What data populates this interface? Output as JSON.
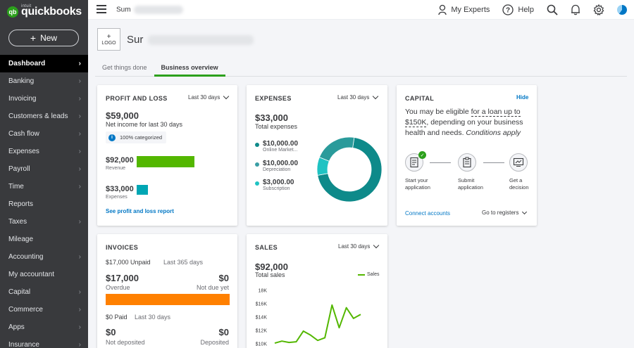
{
  "brand": {
    "intuit": "intuit",
    "name": "quickbooks",
    "mark": "qb"
  },
  "sidebar": {
    "new_label": "New",
    "items": [
      {
        "label": "Dashboard",
        "active": true
      },
      {
        "label": "Banking",
        "chevron": true
      },
      {
        "label": "Invoicing",
        "chevron": true
      },
      {
        "label": "Customers & leads",
        "chevron": true
      },
      {
        "label": "Cash flow",
        "chevron": true
      },
      {
        "label": "Expenses",
        "chevron": true
      },
      {
        "label": "Payroll",
        "chevron": true
      },
      {
        "label": "Time",
        "chevron": true
      },
      {
        "label": "Reports",
        "chevron": false
      },
      {
        "label": "Taxes",
        "chevron": true
      },
      {
        "label": "Mileage",
        "chevron": false
      },
      {
        "label": "Accounting",
        "chevron": true
      },
      {
        "label": "My accountant",
        "chevron": false
      },
      {
        "label": "Capital",
        "chevron": true
      },
      {
        "label": "Commerce",
        "chevron": true
      },
      {
        "label": "Apps",
        "chevron": true
      },
      {
        "label": "Insurance",
        "chevron": true
      }
    ]
  },
  "topbar": {
    "company_short": "Sum",
    "my_experts": "My Experts",
    "help": "Help"
  },
  "header": {
    "logo_plus": "+",
    "logo_label": "LOGO",
    "company_name": "Sur"
  },
  "tabs": [
    {
      "label": "Get things done",
      "active": false
    },
    {
      "label": "Business overview",
      "active": true
    }
  ],
  "profit_loss": {
    "title": "PROFIT AND LOSS",
    "period": "Last 30 days",
    "net_income": "$59,000",
    "net_income_label": "Net income for last 30 days",
    "categorized": "100% categorized",
    "revenue_value": "$92,000",
    "revenue_label": "Revenue",
    "expenses_value": "$33,000",
    "expenses_label": "Expenses",
    "report_link": "See profit and loss report",
    "revenue_color": "#53b700",
    "expenses_color": "#00a6b4"
  },
  "expenses": {
    "title": "EXPENSES",
    "period": "Last 30 days",
    "total": "$33,000",
    "total_label": "Total expenses",
    "items": [
      {
        "value": "$10,000.00",
        "label": "Online Market...",
        "amount": 10000,
        "color": "#0e8a8a"
      },
      {
        "value": "$10,000.00",
        "label": "Depreciation",
        "amount": 10000,
        "color": "#3a9ea5"
      },
      {
        "value": "$3,000.00",
        "label": "Subscription",
        "amount": 3000,
        "color": "#1fc3c3"
      }
    ],
    "donut_segments": [
      {
        "amount": 23000,
        "color": "#0e8a8a"
      },
      {
        "amount": 3000,
        "color": "#1fc3c3"
      },
      {
        "amount": 7000,
        "color": "#2a9b9b"
      }
    ]
  },
  "capital": {
    "title": "CAPITAL",
    "hide": "Hide",
    "text_1": "You may be eligible ",
    "text_link": "for a loan up to $150K",
    "text_2": ", depending on your business health and needs. ",
    "text_em": "Conditions apply",
    "steps": [
      {
        "line1": "Start your",
        "line2": "application"
      },
      {
        "line1": "Submit",
        "line2": "application"
      },
      {
        "line1": "Get a",
        "line2": "decision"
      }
    ],
    "connect": "Connect accounts",
    "go_to": "Go to registers"
  },
  "invoices": {
    "title": "INVOICES",
    "unpaid": "$17,000 Unpaid",
    "unpaid_period": "Last 365 days",
    "overdue_value": "$17,000",
    "overdue_label": "Overdue",
    "not_due_value": "$0",
    "not_due_label": "Not due yet",
    "paid": "$0 Paid",
    "paid_period": "Last 30 days",
    "not_deposited_value": "$0",
    "not_deposited_label": "Not deposited",
    "deposited_value": "$0",
    "deposited_label": "Deposited",
    "bar_color": "#ff8000"
  },
  "sales": {
    "title": "SALES",
    "period": "Last 30 days",
    "total": "$92,000",
    "total_label": "Total sales",
    "legend": "Sales"
  },
  "chart_data": {
    "type": "line",
    "title": "",
    "xlabel": "",
    "ylabel": "",
    "yticks": [
      "18K",
      "$16K",
      "$14K",
      "$12K",
      "$10K"
    ],
    "ylim": [
      10000,
      18000
    ],
    "series": [
      {
        "name": "Sales",
        "color": "#53b700",
        "values": [
          10100,
          10400,
          10200,
          10300,
          11900,
          11300,
          10500,
          10900,
          15800,
          12400,
          15400,
          13800,
          14400
        ]
      }
    ]
  }
}
